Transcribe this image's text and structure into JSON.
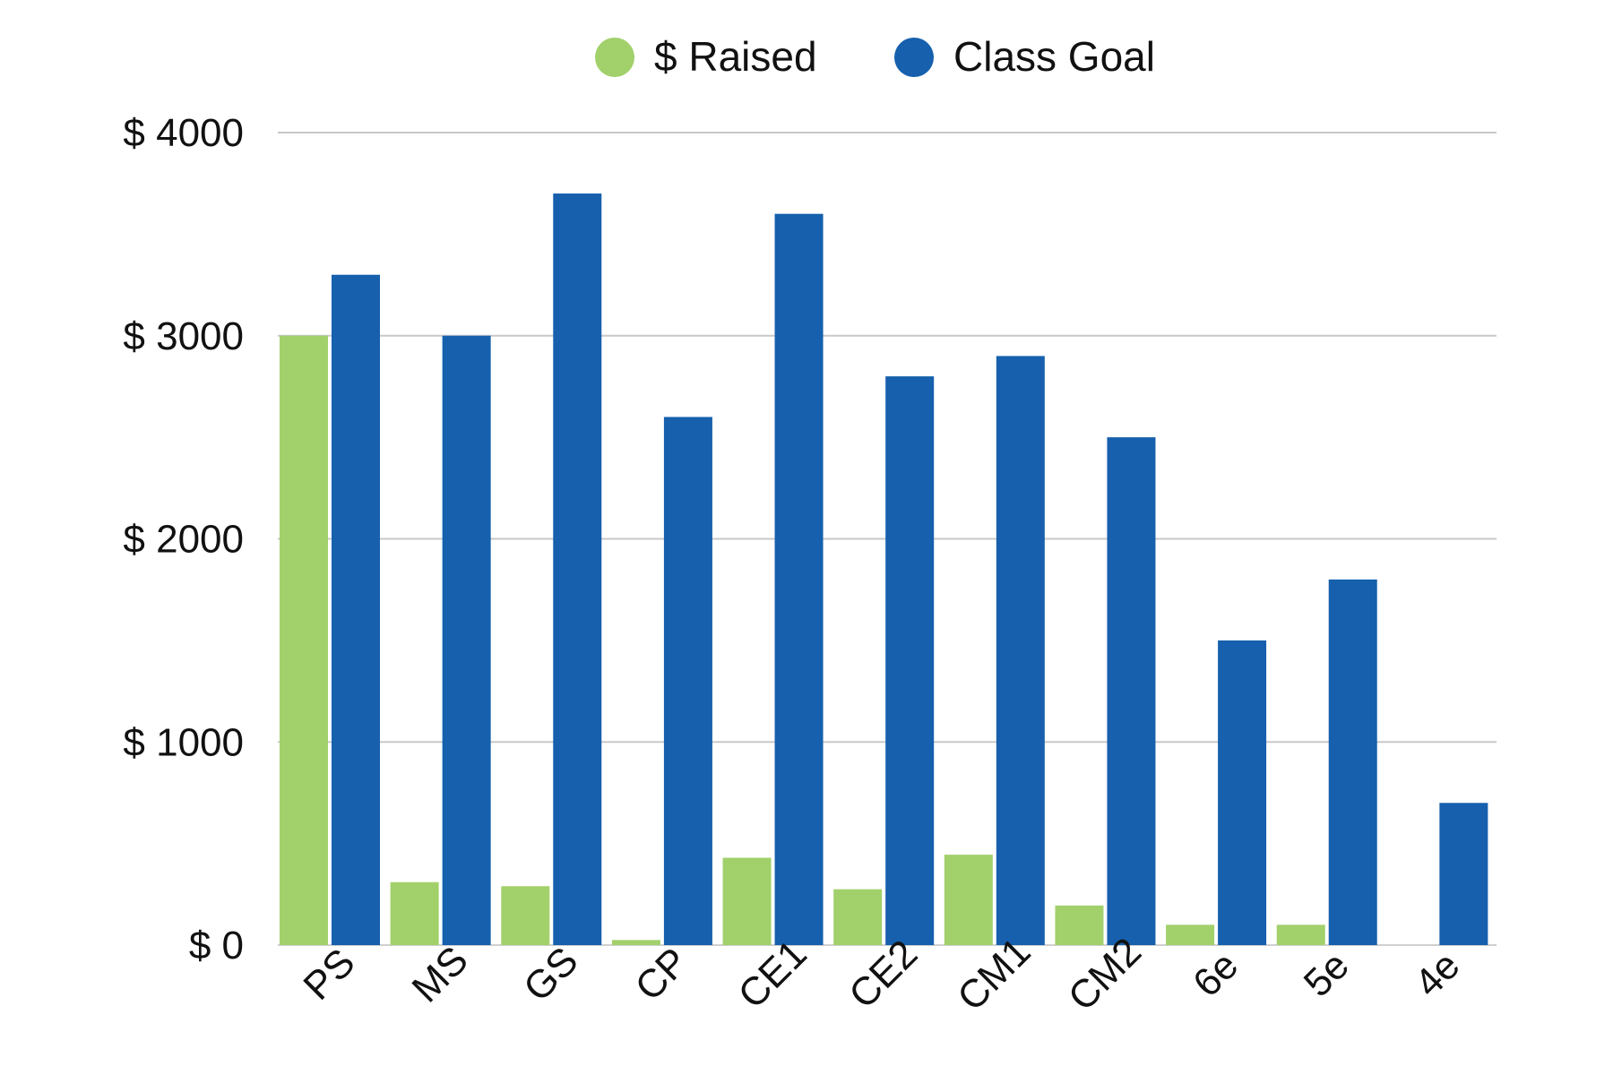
{
  "chart_data": {
    "type": "bar",
    "title": "",
    "xlabel": "",
    "ylabel": "",
    "categories": [
      "PS",
      "MS",
      "GS",
      "CP",
      "CE1",
      "CE2",
      "CM1",
      "CM2",
      "6e",
      "5e",
      "4e"
    ],
    "series": [
      {
        "name": "$ Raised",
        "color": "#a2d06b",
        "values": [
          3000,
          310,
          290,
          25,
          430,
          275,
          445,
          195,
          100,
          100,
          0
        ]
      },
      {
        "name": "Class Goal",
        "color": "#1660ad",
        "values": [
          3300,
          3000,
          3700,
          2600,
          3600,
          2800,
          2900,
          2500,
          1500,
          1800,
          700
        ]
      }
    ],
    "ylim": [
      0,
      4000
    ],
    "yticks": [
      0,
      1000,
      2000,
      3000,
      4000
    ],
    "ytick_labels": [
      "$ 0",
      "$ 1000",
      "$ 2000",
      "$ 3000",
      "$ 4000"
    ],
    "grid": true,
    "legend_position": "top-center",
    "gridline_color": "#c8c8c8"
  }
}
